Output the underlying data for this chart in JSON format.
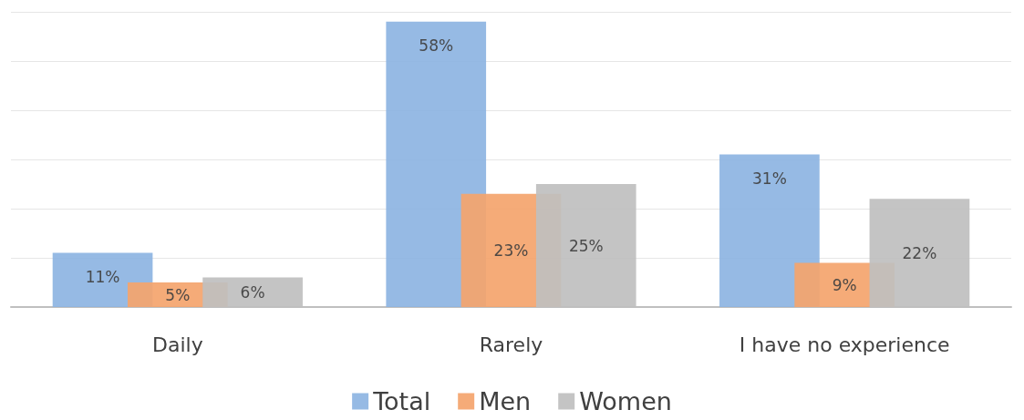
{
  "chart_data": {
    "type": "bar",
    "categories": [
      "Daily",
      "Rarely",
      "I have no experience"
    ],
    "series": [
      {
        "name": "Total",
        "color": "#8db4e2",
        "values": [
          11,
          58,
          31
        ],
        "value_labels": [
          "11%",
          "58%",
          "31%"
        ]
      },
      {
        "name": "Men",
        "color": "#f4a46c",
        "values": [
          5,
          23,
          9
        ],
        "value_labels": [
          "5%",
          "23%",
          "9%"
        ]
      },
      {
        "name": "Women",
        "color": "#bfbfbf",
        "values": [
          6,
          25,
          22
        ],
        "value_labels": [
          "6%",
          "25%",
          "22%"
        ]
      }
    ],
    "grid": "y",
    "tick_labels": "x",
    "legend": "bottom"
  }
}
